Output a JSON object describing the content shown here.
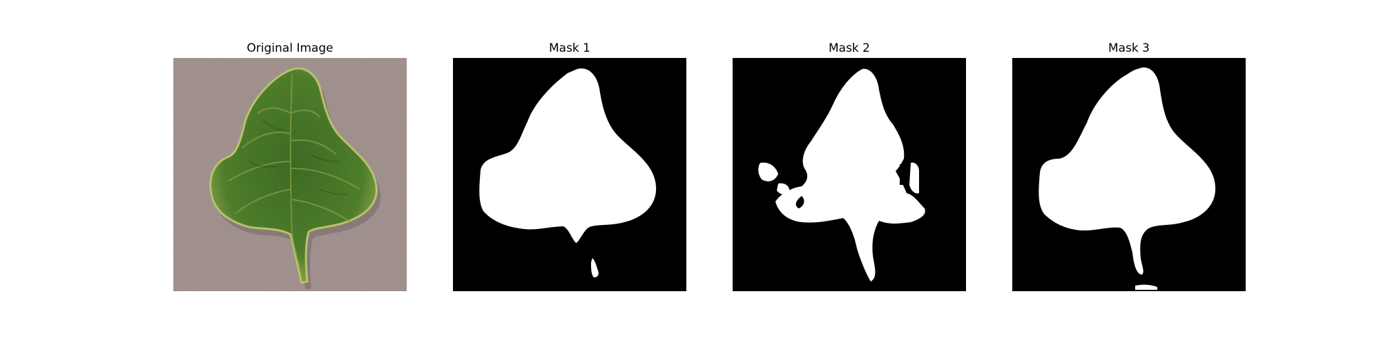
{
  "figure": {
    "panels": [
      {
        "title": "Original Image"
      },
      {
        "title": "Mask 1"
      },
      {
        "title": "Mask 2"
      },
      {
        "title": "Mask 3"
      }
    ]
  },
  "colors": {
    "background": "#9a8a88",
    "leaf_dark": "#2f5a1e",
    "leaf_mid": "#4e7d2b",
    "leaf_light": "#8fa84a",
    "leaf_edge": "#b9c26a",
    "mask_background": "#000000",
    "mask_foreground": "#ffffff"
  }
}
